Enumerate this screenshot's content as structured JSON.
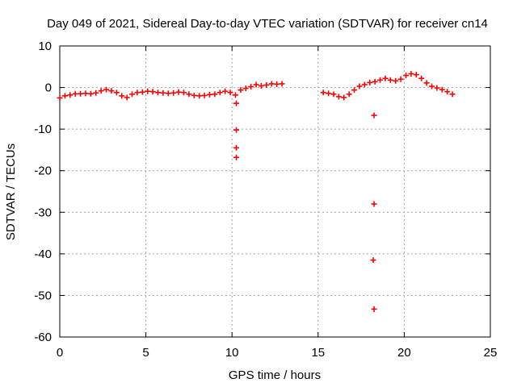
{
  "chart_data": {
    "type": "scatter",
    "title": "Day 049 of 2021, Sidereal Day-to-day VTEC variation (SDTVAR) for receiver cn14",
    "xlabel": "GPS time / hours",
    "ylabel": "SDTVAR / TECUs",
    "xlim": [
      0,
      25
    ],
    "ylim": [
      -60,
      10
    ],
    "xticks": [
      0,
      5,
      10,
      15,
      20,
      25
    ],
    "yticks": [
      -60,
      -50,
      -40,
      -30,
      -20,
      -10,
      0,
      10
    ],
    "grid": true,
    "marker": "+",
    "color": "#ff0000",
    "series": [
      {
        "name": "SDTVAR",
        "x": [
          0.0,
          0.3,
          0.6,
          0.9,
          1.2,
          1.5,
          1.8,
          2.1,
          2.4,
          2.7,
          3.0,
          3.3,
          3.6,
          3.9,
          4.2,
          4.5,
          4.8,
          5.1,
          5.4,
          5.7,
          6.0,
          6.3,
          6.6,
          6.9,
          7.2,
          7.5,
          7.8,
          8.1,
          8.4,
          8.7,
          9.0,
          9.3,
          9.6,
          9.9,
          10.2,
          10.5,
          10.8,
          11.1,
          11.4,
          11.7,
          12.0,
          12.3,
          12.6,
          12.9,
          15.3,
          15.6,
          15.9,
          16.2,
          16.5,
          16.8,
          17.1,
          17.4,
          17.7,
          18.0,
          18.3,
          18.6,
          18.9,
          19.2,
          19.5,
          19.8,
          20.1,
          20.4,
          20.7,
          21.0,
          21.3,
          21.6,
          21.9,
          22.2,
          22.5,
          22.8,
          10.25,
          10.25,
          10.25,
          10.25,
          18.25,
          18.25,
          18.2,
          18.25
        ],
        "y": [
          -2.5,
          -2.0,
          -1.8,
          -1.5,
          -1.5,
          -1.4,
          -1.5,
          -1.3,
          -0.8,
          -0.5,
          -0.8,
          -1.2,
          -2.0,
          -2.4,
          -1.6,
          -1.2,
          -1.1,
          -0.9,
          -1.0,
          -1.2,
          -1.3,
          -1.4,
          -1.3,
          -1.1,
          -1.2,
          -1.6,
          -1.9,
          -2.0,
          -1.9,
          -1.7,
          -1.6,
          -1.2,
          -0.9,
          -1.2,
          -1.8,
          -0.6,
          -0.2,
          0.2,
          0.7,
          0.4,
          0.6,
          0.9,
          0.8,
          0.9,
          -1.2,
          -1.4,
          -1.6,
          -2.2,
          -2.4,
          -1.6,
          -0.6,
          0.3,
          0.7,
          1.2,
          1.4,
          1.8,
          2.2,
          1.8,
          1.6,
          2.0,
          2.9,
          3.3,
          3.1,
          2.2,
          1.1,
          0.3,
          -0.1,
          -0.5,
          -1.0,
          -1.6,
          -3.8,
          -10.2,
          -14.5,
          -16.8,
          -6.7,
          -28.0,
          -41.5,
          -53.3
        ]
      }
    ]
  }
}
